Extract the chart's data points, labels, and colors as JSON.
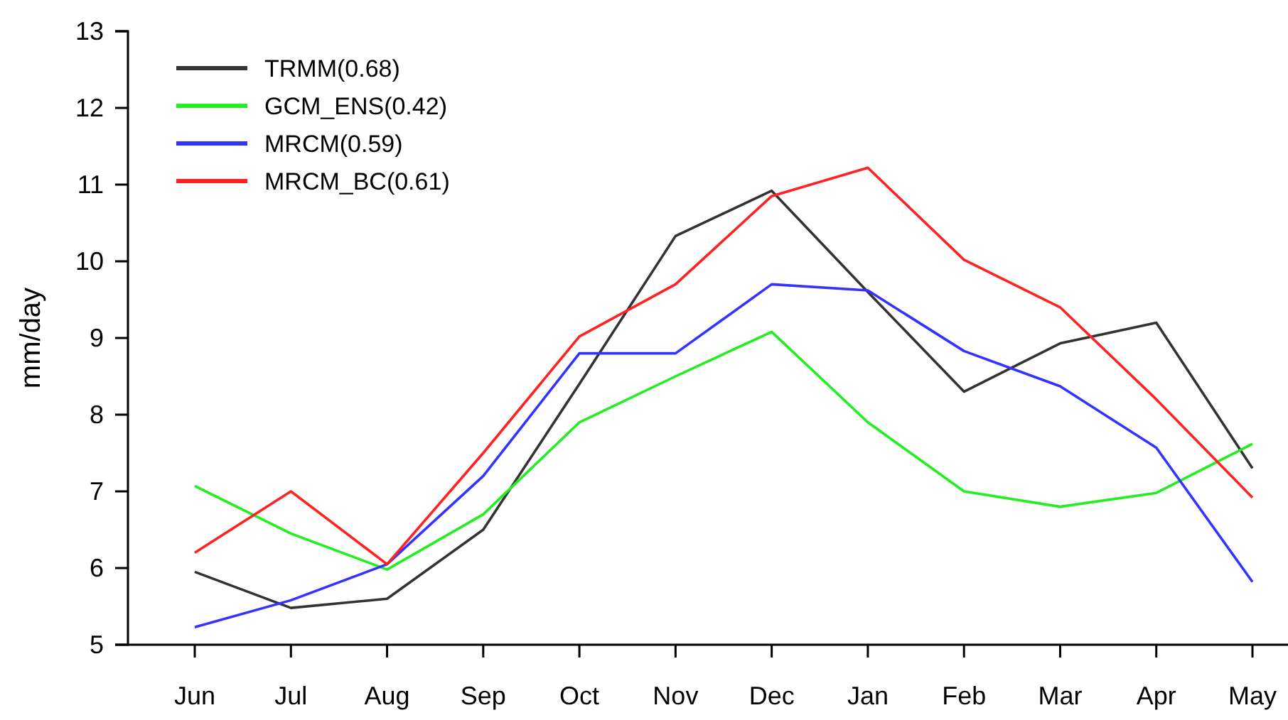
{
  "chart_data": {
    "type": "line",
    "ylabel": "mm/day",
    "categories": [
      "Jun",
      "Jul",
      "Aug",
      "Sep",
      "Oct",
      "Nov",
      "Dec",
      "Jan",
      "Feb",
      "Mar",
      "Apr",
      "May"
    ],
    "ylim": [
      5,
      13
    ],
    "yticks": [
      5,
      6,
      7,
      8,
      9,
      10,
      11,
      12,
      13
    ],
    "legend": "top left",
    "grid": false,
    "series": [
      {
        "name": "TRMM(0.68)",
        "color": "#333333",
        "values": [
          5.95,
          5.48,
          5.6,
          6.5,
          8.4,
          10.33,
          10.92,
          9.6,
          8.3,
          8.93,
          9.2,
          7.3
        ]
      },
      {
        "name": "GCM_ENS(0.42)",
        "color": "#22ee22",
        "values": [
          7.07,
          6.45,
          5.98,
          6.7,
          7.9,
          8.5,
          9.08,
          7.9,
          7.0,
          6.8,
          6.98,
          7.62
        ]
      },
      {
        "name": "MRCM(0.59)",
        "color": "#3333ff",
        "values": [
          5.23,
          5.58,
          6.05,
          7.2,
          8.8,
          8.8,
          9.7,
          9.62,
          8.83,
          8.37,
          7.57,
          5.82
        ]
      },
      {
        "name": "MRCM_BC(0.61)",
        "color": "#ff2222",
        "values": [
          6.2,
          7.0,
          6.05,
          7.5,
          9.02,
          9.7,
          10.85,
          11.22,
          10.02,
          9.4,
          8.2,
          6.92
        ]
      }
    ]
  }
}
